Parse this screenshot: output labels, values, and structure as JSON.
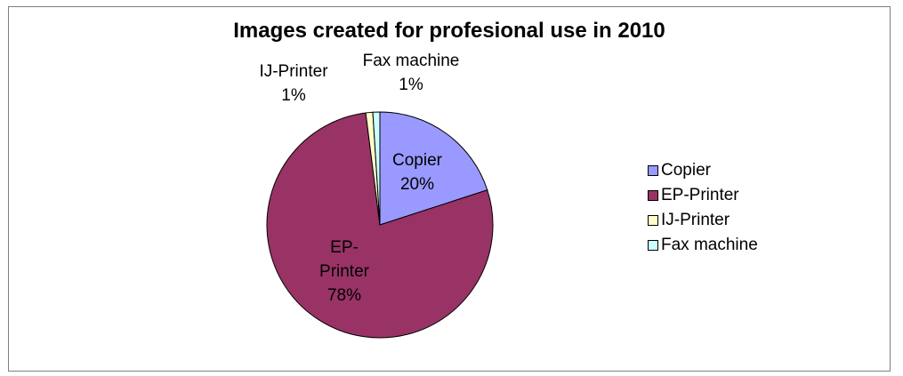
{
  "chart_data": {
    "type": "pie",
    "title": "Images created for profesional use in 2010",
    "slices": [
      {
        "name": "Copier",
        "value": 20,
        "label_lines": [
          "Copier",
          "20%"
        ],
        "color": "#9999ff"
      },
      {
        "name": "EP-Printer",
        "value": 78,
        "label_lines": [
          "EP-",
          "Printer",
          "78%"
        ],
        "color": "#993366"
      },
      {
        "name": "IJ-Printer",
        "value": 1,
        "label_lines": [
          "IJ-Printer",
          "1%"
        ],
        "color": "#ffffcc"
      },
      {
        "name": "Fax machine",
        "value": 1,
        "label_lines": [
          "Fax machine",
          "1%"
        ],
        "color": "#ccffff"
      }
    ],
    "legend_position": "right"
  }
}
